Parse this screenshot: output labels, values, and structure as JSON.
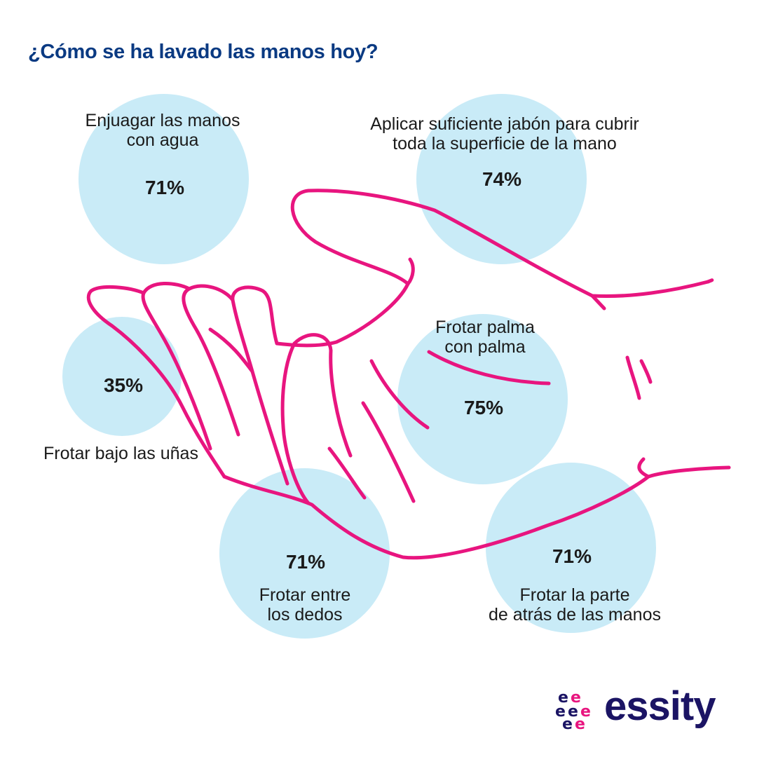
{
  "title": "¿Cómo se ha lavado las manos hoy?",
  "chart_data": {
    "type": "bubble",
    "title": "¿Cómo se ha lavado las manos hoy?",
    "unit": "%",
    "items": [
      {
        "label": "Enjuagar las manos\ncon agua",
        "value": 71,
        "value_text": "71%"
      },
      {
        "label": "Aplicar suficiente jabón para cubrir\ntoda la superficie de la mano",
        "value": 74,
        "value_text": "74%"
      },
      {
        "label": "Frotar bajo las uñas",
        "value": 35,
        "value_text": "35%"
      },
      {
        "label": "Frotar palma\ncon palma",
        "value": 75,
        "value_text": "75%"
      },
      {
        "label": "Frotar entre\nlos dedos",
        "value": 71,
        "value_text": "71%"
      },
      {
        "label": "Frotar la parte\nde atrás de las manos",
        "value": 71,
        "value_text": "71%"
      }
    ]
  },
  "colors": {
    "bubble": "#c9ebf7",
    "hand_outline": "#e8157f",
    "title": "#0a3a82",
    "brand": "#1b1464"
  },
  "logo": {
    "text": "essity",
    "icon": "essity-e-cluster-icon"
  }
}
